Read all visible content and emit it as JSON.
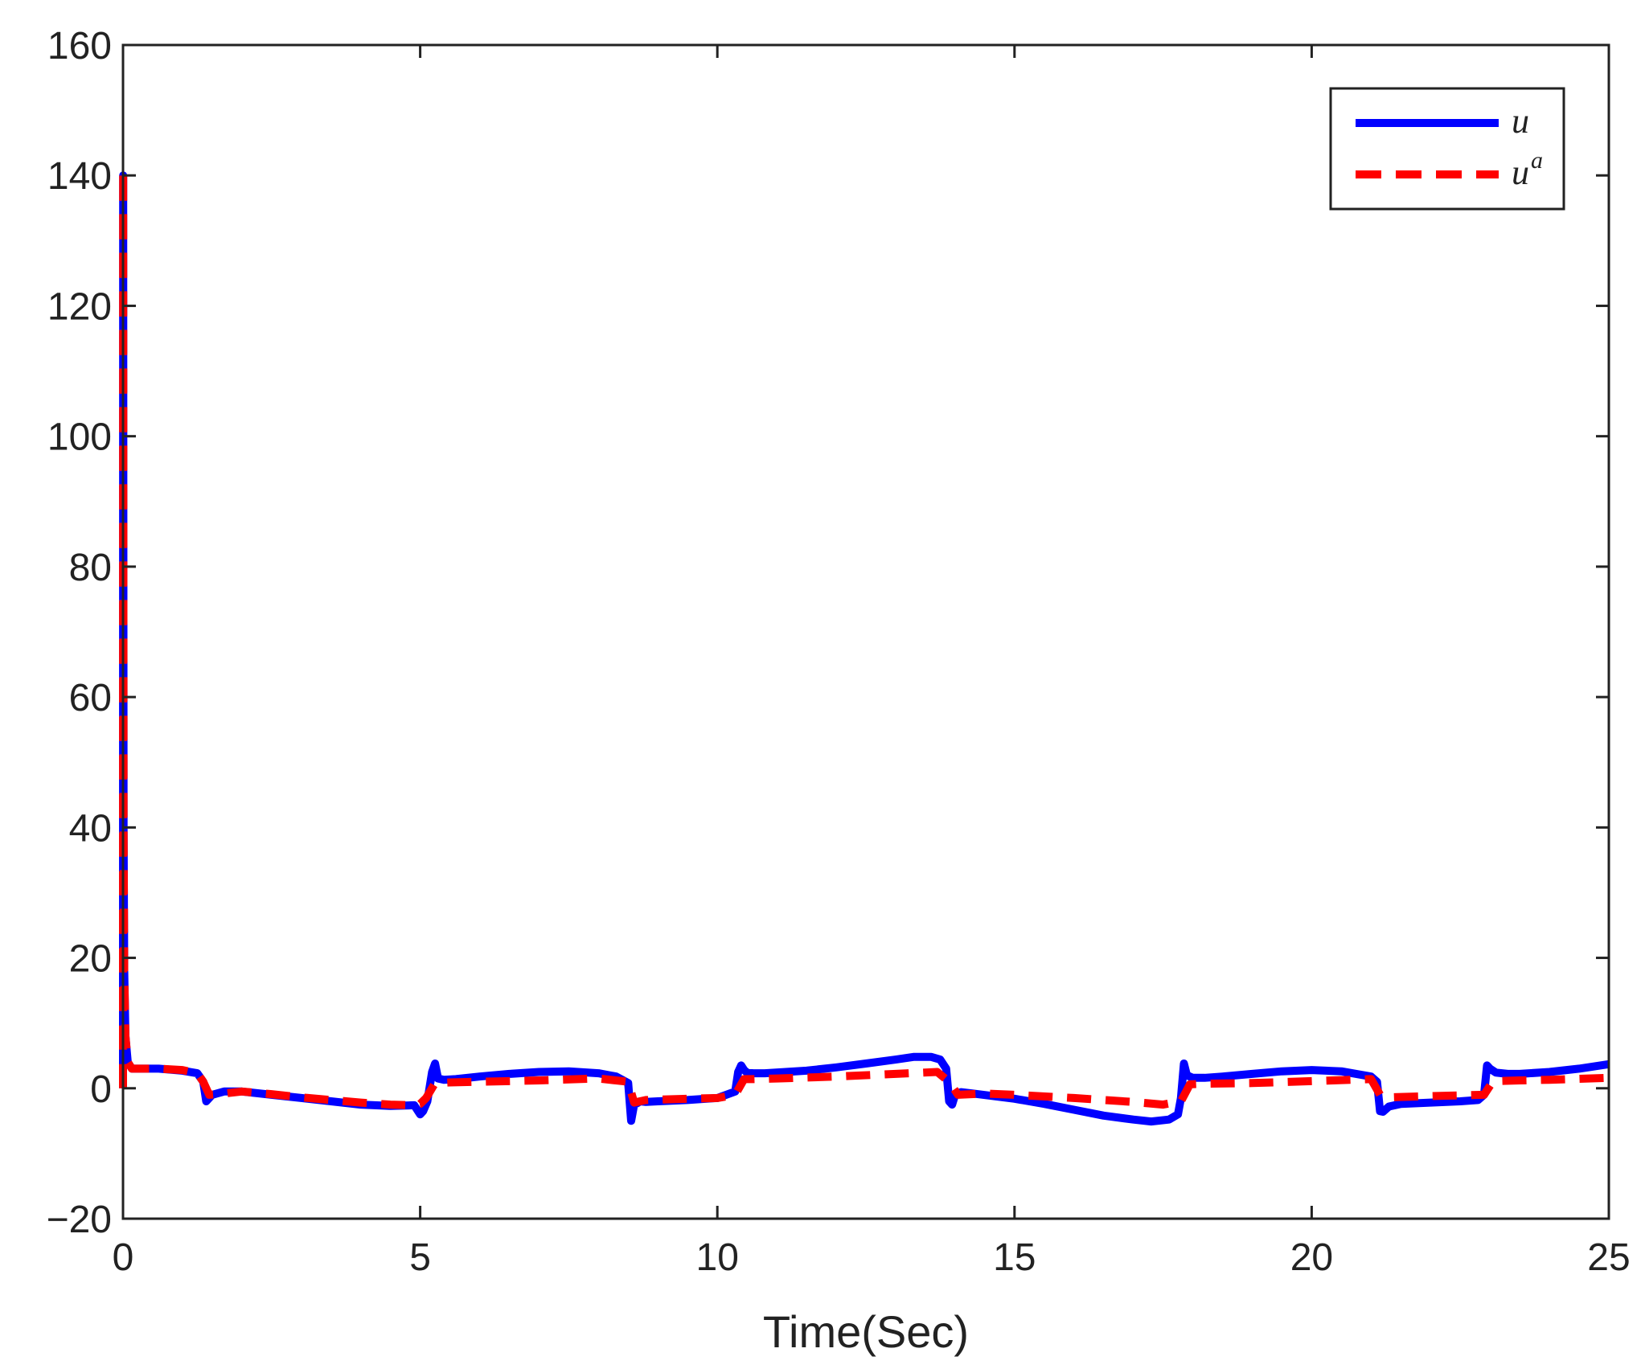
{
  "chart_data": {
    "type": "line",
    "title": "",
    "xlabel": "Time(Sec)",
    "ylabel": "",
    "xlim": [
      0,
      25
    ],
    "ylim": [
      -20,
      160
    ],
    "x_ticks": [
      0,
      5,
      10,
      15,
      20,
      25
    ],
    "x_tick_labels": [
      "0",
      "5",
      "10",
      "15",
      "20",
      "25"
    ],
    "y_ticks": [
      -20,
      0,
      20,
      40,
      60,
      80,
      100,
      120,
      140,
      160
    ],
    "y_tick_labels": [
      "−20",
      "0",
      "20",
      "40",
      "60",
      "80",
      "100",
      "120",
      "140",
      "160"
    ],
    "grid": false,
    "legend_position": "top-right",
    "series": [
      {
        "name": "u",
        "color": "#0000ff",
        "style": "solid",
        "x": [
          0,
          0.003,
          0.006,
          0.01,
          0.02,
          0.04,
          0.08,
          0.15,
          0.3,
          0.6,
          1.0,
          1.25,
          1.35,
          1.4,
          1.5,
          1.7,
          2.0,
          2.5,
          3.0,
          3.5,
          4.0,
          4.5,
          4.9,
          5.0,
          5.05,
          5.12,
          5.2,
          5.25,
          5.3,
          5.4,
          5.6,
          6.0,
          6.5,
          7.0,
          7.5,
          8.0,
          8.3,
          8.5,
          8.55,
          8.6,
          8.65,
          8.7,
          8.8,
          9.0,
          9.5,
          10.0,
          10.3,
          10.35,
          10.4,
          10.45,
          10.5,
          10.6,
          10.8,
          11.5,
          12.0,
          12.5,
          13.0,
          13.3,
          13.6,
          13.75,
          13.85,
          13.9,
          13.95,
          14.0,
          14.1,
          14.3,
          15.0,
          15.5,
          16.0,
          16.5,
          17.0,
          17.3,
          17.6,
          17.75,
          17.8,
          17.85,
          17.9,
          18.0,
          18.2,
          18.5,
          19.0,
          19.5,
          20.0,
          20.5,
          21.0,
          21.1,
          21.15,
          21.2,
          21.3,
          21.5,
          22.0,
          22.5,
          22.8,
          22.9,
          22.95,
          23.0,
          23.1,
          23.3,
          23.5,
          24.0,
          24.5,
          25.0
        ],
        "y": [
          0,
          140,
          90,
          40,
          18,
          8,
          4,
          3,
          3,
          3,
          2.7,
          2.3,
          1.0,
          -2.0,
          -1.0,
          -0.5,
          -0.5,
          -1.0,
          -1.5,
          -2.0,
          -2.5,
          -2.7,
          -2.6,
          -4.0,
          -3.5,
          -2.0,
          2.5,
          3.8,
          1.5,
          1.3,
          1.4,
          1.8,
          2.2,
          2.5,
          2.6,
          2.3,
          1.8,
          0.8,
          -5.0,
          -2.5,
          -2.3,
          -2.0,
          -2.1,
          -2.0,
          -1.8,
          -1.5,
          -0.5,
          2.5,
          3.5,
          2.8,
          2.4,
          2.3,
          2.3,
          2.7,
          3.2,
          3.8,
          4.4,
          4.8,
          4.8,
          4.4,
          3.0,
          -2.0,
          -2.5,
          -1.0,
          -0.6,
          -0.8,
          -1.6,
          -2.4,
          -3.3,
          -4.2,
          -4.8,
          -5.1,
          -4.8,
          -4.0,
          -1.5,
          3.8,
          2.0,
          1.6,
          1.6,
          1.8,
          2.2,
          2.6,
          2.8,
          2.6,
          1.8,
          1.0,
          -3.5,
          -3.6,
          -2.8,
          -2.4,
          -2.2,
          -2.0,
          -1.8,
          -1.0,
          3.5,
          3.0,
          2.4,
          2.2,
          2.2,
          2.5,
          3.0,
          3.7
        ]
      },
      {
        "name": "u^a",
        "color": "#ff0000",
        "style": "dashed",
        "x": [
          0,
          0.003,
          0.006,
          0.01,
          0.02,
          0.04,
          0.08,
          0.15,
          0.3,
          0.6,
          1.0,
          1.25,
          1.35,
          1.45,
          1.7,
          2.0,
          2.5,
          3.0,
          3.5,
          4.0,
          4.5,
          4.9,
          5.0,
          5.1,
          5.25,
          5.5,
          6.0,
          7.0,
          8.0,
          8.5,
          8.6,
          8.8,
          9.5,
          10.0,
          10.3,
          10.45,
          10.6,
          11.0,
          12.0,
          13.0,
          13.7,
          13.9,
          14.05,
          14.5,
          15.0,
          16.0,
          17.0,
          17.5,
          17.8,
          17.95,
          18.2,
          19.0,
          20.0,
          21.0,
          21.15,
          21.3,
          22.0,
          22.9,
          23.05,
          23.5,
          24.0,
          25.0
        ],
        "y": [
          0,
          141,
          90,
          40,
          18,
          8,
          4,
          3,
          3,
          3,
          2.8,
          2.3,
          1.0,
          -1.0,
          -0.8,
          -0.5,
          -0.9,
          -1.4,
          -1.8,
          -2.2,
          -2.5,
          -2.6,
          -2.4,
          -1.5,
          0.8,
          0.9,
          1.0,
          1.2,
          1.5,
          1.0,
          -2.2,
          -1.8,
          -1.6,
          -1.5,
          -1.0,
          1.4,
          1.4,
          1.5,
          1.8,
          2.2,
          2.5,
          1.0,
          -1.0,
          -0.8,
          -1.0,
          -1.5,
          -2.1,
          -2.5,
          -2.0,
          0.6,
          0.7,
          0.8,
          1.1,
          1.4,
          -1.0,
          -1.4,
          -1.2,
          -1.0,
          1.1,
          1.2,
          1.3,
          1.6
        ]
      }
    ]
  },
  "legend": {
    "items": [
      {
        "label": "u",
        "sup": ""
      },
      {
        "label": "u",
        "sup": "a"
      }
    ]
  }
}
